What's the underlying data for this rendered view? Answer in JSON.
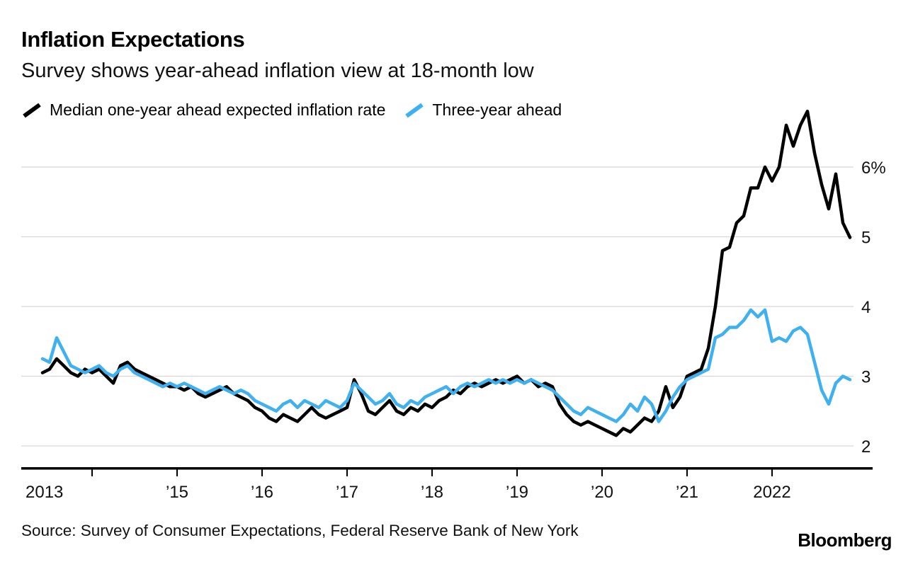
{
  "header": {
    "title": "Inflation Expectations",
    "subtitle": "Survey shows year-ahead inflation view at 18-month low"
  },
  "legend": [
    {
      "label": "Median one-year ahead expected inflation rate",
      "color": "#000000",
      "icon": "line-swatch-icon"
    },
    {
      "label": "Three-year ahead",
      "color": "#3fb1f0",
      "icon": "line-swatch-icon"
    }
  ],
  "footer": {
    "source": "Source: Survey of Consumer Expectations, Federal Reserve Bank of New York",
    "brand": "Bloomberg"
  },
  "colors": {
    "one_year_line": "#000000",
    "three_year_line": "#3fb1f0",
    "gridline": "#d8d8d8",
    "axis": "#000000"
  },
  "chart_data": {
    "type": "line",
    "title": "Inflation Expectations",
    "x_interval": "monthly",
    "x_range": [
      "2013-06",
      "2022-12"
    ],
    "x_label_years": [
      2013,
      2015,
      2016,
      2017,
      2018,
      2019,
      2020,
      2021,
      2022
    ],
    "x_tick_labels": [
      "2013",
      "’15",
      "’16",
      "’17",
      "’18",
      "’19",
      "’20",
      "’21",
      "2022"
    ],
    "x_tick_years_all": [
      2014,
      2015,
      2016,
      2017,
      2018,
      2019,
      2020,
      2021,
      2022
    ],
    "y_ticks": [
      2,
      3,
      4,
      5,
      6
    ],
    "y_tick_labels": [
      "2",
      "3",
      "4",
      "5",
      "6%"
    ],
    "ylim": [
      1.8,
      7.0
    ],
    "grid": "horizontal",
    "legend_position": "top-left",
    "series": [
      {
        "name": "Median one-year ahead expected inflation rate",
        "color": "#000000",
        "values": [
          3.05,
          3.1,
          3.25,
          3.15,
          3.05,
          3.0,
          3.1,
          3.05,
          3.1,
          3.0,
          2.9,
          3.15,
          3.2,
          3.1,
          3.05,
          3.0,
          2.95,
          2.9,
          2.85,
          2.85,
          2.8,
          2.85,
          2.75,
          2.7,
          2.75,
          2.8,
          2.85,
          2.75,
          2.7,
          2.65,
          2.55,
          2.5,
          2.4,
          2.35,
          2.45,
          2.4,
          2.35,
          2.45,
          2.55,
          2.45,
          2.4,
          2.45,
          2.5,
          2.55,
          2.95,
          2.75,
          2.5,
          2.45,
          2.55,
          2.65,
          2.5,
          2.45,
          2.55,
          2.5,
          2.6,
          2.55,
          2.65,
          2.7,
          2.8,
          2.75,
          2.85,
          2.9,
          2.85,
          2.9,
          2.95,
          2.9,
          2.95,
          3.0,
          2.9,
          2.95,
          2.85,
          2.9,
          2.85,
          2.6,
          2.45,
          2.35,
          2.3,
          2.35,
          2.3,
          2.25,
          2.2,
          2.15,
          2.25,
          2.2,
          2.3,
          2.4,
          2.35,
          2.5,
          2.85,
          2.55,
          2.7,
          3.0,
          3.05,
          3.1,
          3.4,
          4.0,
          4.8,
          4.85,
          5.2,
          5.3,
          5.7,
          5.7,
          6.0,
          5.8,
          6.0,
          6.6,
          6.3,
          6.6,
          6.8,
          6.2,
          5.75,
          5.4,
          5.9,
          5.2,
          4.99
        ]
      },
      {
        "name": "Three-year ahead",
        "color": "#3fb1f0",
        "values": [
          3.25,
          3.2,
          3.55,
          3.35,
          3.15,
          3.1,
          3.05,
          3.1,
          3.15,
          3.05,
          3.0,
          3.1,
          3.15,
          3.05,
          3.0,
          2.95,
          2.9,
          2.85,
          2.9,
          2.85,
          2.9,
          2.85,
          2.8,
          2.75,
          2.8,
          2.85,
          2.8,
          2.75,
          2.8,
          2.75,
          2.65,
          2.6,
          2.55,
          2.5,
          2.6,
          2.65,
          2.55,
          2.65,
          2.6,
          2.55,
          2.65,
          2.6,
          2.55,
          2.65,
          2.9,
          2.8,
          2.7,
          2.6,
          2.65,
          2.75,
          2.6,
          2.55,
          2.65,
          2.6,
          2.7,
          2.75,
          2.8,
          2.85,
          2.75,
          2.85,
          2.9,
          2.85,
          2.9,
          2.95,
          2.9,
          2.95,
          2.9,
          2.95,
          2.9,
          2.95,
          2.9,
          2.85,
          2.8,
          2.7,
          2.6,
          2.5,
          2.45,
          2.55,
          2.5,
          2.45,
          2.4,
          2.35,
          2.45,
          2.6,
          2.5,
          2.7,
          2.6,
          2.35,
          2.5,
          2.7,
          2.85,
          2.95,
          3.0,
          3.05,
          3.1,
          3.55,
          3.6,
          3.7,
          3.7,
          3.8,
          3.95,
          3.85,
          3.95,
          3.5,
          3.55,
          3.5,
          3.65,
          3.7,
          3.6,
          3.2,
          2.8,
          2.6,
          2.9,
          3.0,
          2.95
        ]
      }
    ]
  }
}
